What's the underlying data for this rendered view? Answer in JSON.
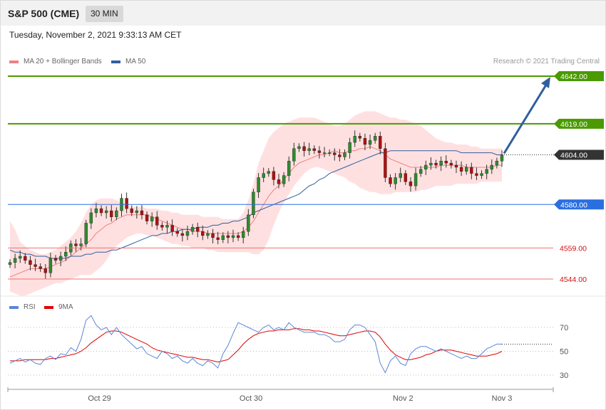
{
  "header": {
    "instrument": "S&P 500 (CME)",
    "timeframe": "30 MIN",
    "datetime": "Tuesday, November 2, 2021 9:33:13 AM CET",
    "credit": "Research © 2021 Trading Central"
  },
  "price_legend": [
    {
      "label": "MA 20 + Bollinger Bands",
      "color": "#f08080"
    },
    {
      "label": "MA 50",
      "color": "#2f5f9e"
    }
  ],
  "rsi_legend": [
    {
      "label": "RSI",
      "color": "#5b86d8"
    },
    {
      "label": "9MA",
      "color": "#e00000"
    }
  ],
  "colors": {
    "resistance": "#4a9a00",
    "pivot": "#2a6fe0",
    "support": "#d01010",
    "current": "#333333",
    "arrow": "#2f5f9e",
    "band": "#ffd6d6",
    "candle_up": "#2e8b2e",
    "candle_down": "#b01010"
  },
  "chart_data": [
    {
      "type": "candlestick",
      "title": "S&P 500 (CME)",
      "x_ticks": [
        "Oct 29",
        "Oct 30",
        "Nov 2",
        "Nov 3"
      ],
      "ylim": [
        4534,
        4650
      ],
      "current_price": "4604.00",
      "levels": [
        {
          "value": 4642,
          "label": "4642.00",
          "kind": "resistance"
        },
        {
          "value": 4619,
          "label": "4619.00",
          "kind": "resistance"
        },
        {
          "value": 4580,
          "label": "4580.00",
          "kind": "pivot"
        },
        {
          "value": 4559,
          "label": "4559.00",
          "kind": "support"
        },
        {
          "value": 4544,
          "label": "4544.00",
          "kind": "support"
        }
      ],
      "forecast_arrow": {
        "from": 4604,
        "to": 4642
      },
      "close_path": [
        4552,
        4554,
        4555,
        4553,
        4551,
        4550,
        4549,
        4547,
        4554,
        4553,
        4555,
        4557,
        4561,
        4560,
        4561,
        4571,
        4576,
        4578,
        4576,
        4577,
        4574,
        4577,
        4583,
        4578,
        4576,
        4577,
        4575,
        4572,
        4574,
        4570,
        4569,
        4570,
        4567,
        4566,
        4565,
        4567,
        4569,
        4567,
        4565,
        4566,
        4564,
        4563,
        4565,
        4564,
        4565,
        4564,
        4567,
        4575,
        4586,
        4593,
        4595,
        4596,
        4592,
        4590,
        4594,
        4601,
        4607,
        4608,
        4606,
        4607,
        4606,
        4605,
        4605,
        4605,
        4604,
        4603,
        4605,
        4610,
        4613,
        4612,
        4609,
        4611,
        4613,
        4607,
        4593,
        4590,
        4593,
        4595,
        4591,
        4589,
        4595,
        4597,
        4599,
        4600,
        4599,
        4601,
        4600,
        4599,
        4598,
        4596,
        4598,
        4595,
        4594,
        4595,
        4597,
        4599,
        4601,
        4604
      ],
      "ma20": [
        4545,
        4546,
        4547,
        4548,
        4549,
        4549,
        4549,
        4549,
        4550,
        4551,
        4552,
        4553,
        4555,
        4557,
        4559,
        4561,
        4563,
        4566,
        4568,
        4570,
        4571,
        4573,
        4574,
        4575,
        4575,
        4575,
        4575,
        4575,
        4574,
        4573,
        4572,
        4571,
        4570,
        4569,
        4568,
        4568,
        4567,
        4567,
        4567,
        4566,
        4566,
        4566,
        4566,
        4566,
        4566,
        4566,
        4567,
        4569,
        4572,
        4576,
        4580,
        4584,
        4587,
        4589,
        4592,
        4595,
        4598,
        4600,
        4601,
        4602,
        4603,
        4604,
        4604,
        4605,
        4606,
        4605,
        4605,
        4606,
        4606,
        4607,
        4607,
        4608,
        4607,
        4606,
        4604,
        4602,
        4601,
        4600,
        4599,
        4598,
        4598,
        4598,
        4598,
        4598,
        4598,
        4599,
        4599,
        4599,
        4599,
        4599,
        4598,
        4598,
        4598,
        4598,
        4598,
        4598,
        4599,
        4599
      ],
      "bb_upper": [
        4572,
        4568,
        4562,
        4560,
        4558,
        4557,
        4556,
        4556,
        4557,
        4558,
        4560,
        4562,
        4564,
        4567,
        4571,
        4576,
        4580,
        4582,
        4583,
        4583,
        4583,
        4582,
        4581,
        4580,
        4579,
        4579,
        4579,
        4578,
        4578,
        4578,
        4577,
        4577,
        4576,
        4576,
        4575,
        4575,
        4575,
        4575,
        4574,
        4574,
        4574,
        4574,
        4573,
        4573,
        4573,
        4573,
        4576,
        4582,
        4590,
        4600,
        4606,
        4612,
        4615,
        4617,
        4619,
        4620,
        4621,
        4622,
        4622,
        4622,
        4622,
        4621,
        4620,
        4619,
        4618,
        4618,
        4619,
        4621,
        4623,
        4624,
        4625,
        4625,
        4625,
        4624,
        4623,
        4622,
        4622,
        4621,
        4621,
        4620,
        4619,
        4618,
        4616,
        4614,
        4612,
        4611,
        4610,
        4610,
        4609,
        4609,
        4609,
        4608,
        4608,
        4607,
        4607,
        4607,
        4607,
        4607
      ],
      "bb_lower": [
        4538,
        4537,
        4536,
        4536,
        4537,
        4538,
        4539,
        4540,
        4541,
        4542,
        4542,
        4543,
        4544,
        4545,
        4546,
        4546,
        4546,
        4548,
        4550,
        4553,
        4557,
        4560,
        4562,
        4564,
        4565,
        4566,
        4566,
        4565,
        4565,
        4564,
        4563,
        4562,
        4561,
        4561,
        4560,
        4560,
        4559,
        4559,
        4559,
        4558,
        4558,
        4557,
        4557,
        4557,
        4557,
        4557,
        4557,
        4557,
        4556,
        4556,
        4558,
        4563,
        4570,
        4576,
        4581,
        4585,
        4589,
        4592,
        4595,
        4597,
        4598,
        4598,
        4597,
        4596,
        4595,
        4594,
        4593,
        4591,
        4590,
        4588,
        4587,
        4586,
        4586,
        4585,
        4585,
        4585,
        4586,
        4586,
        4586,
        4586,
        4586,
        4587,
        4587,
        4588,
        4589,
        4589,
        4589,
        4589,
        4590,
        4590,
        4590,
        4590,
        4590,
        4591,
        4591,
        4591,
        4591,
        4591
      ],
      "ma50": [
        4558,
        4557,
        4557,
        4556,
        4556,
        4555,
        4555,
        4555,
        4554,
        4554,
        4554,
        4554,
        4555,
        4555,
        4555,
        4556,
        4556,
        4557,
        4557,
        4557,
        4558,
        4558,
        4559,
        4560,
        4561,
        4562,
        4563,
        4564,
        4565,
        4565,
        4566,
        4566,
        4567,
        4567,
        4568,
        4568,
        4568,
        4569,
        4569,
        4569,
        4570,
        4570,
        4571,
        4571,
        4572,
        4572,
        4573,
        4574,
        4576,
        4577,
        4578,
        4579,
        4580,
        4581,
        4582,
        4583,
        4584,
        4585,
        4587,
        4589,
        4590,
        4592,
        4593,
        4595,
        4596,
        4597,
        4598,
        4599,
        4600,
        4601,
        4602,
        4603,
        4604,
        4605,
        4605,
        4606,
        4606,
        4606,
        4606,
        4606,
        4606,
        4606,
        4606,
        4606,
        4606,
        4606,
        4606,
        4606,
        4606,
        4605,
        4605,
        4605,
        4605,
        4605,
        4605,
        4605,
        4604,
        4604
      ]
    },
    {
      "type": "line",
      "title": "RSI",
      "x_ticks": [
        "Oct 29",
        "Oct 30",
        "Nov 2",
        "Nov 3"
      ],
      "ylim": [
        20,
        90
      ],
      "y_ticks": [
        70,
        50,
        30
      ],
      "series": [
        {
          "name": "RSI",
          "values": [
            40,
            42,
            44,
            41,
            43,
            40,
            39,
            44,
            46,
            43,
            48,
            47,
            53,
            50,
            60,
            76,
            80,
            72,
            68,
            70,
            64,
            70,
            64,
            60,
            56,
            52,
            54,
            48,
            46,
            44,
            50,
            48,
            44,
            46,
            42,
            40,
            44,
            40,
            38,
            42,
            40,
            36,
            48,
            55,
            65,
            74,
            72,
            70,
            68,
            66,
            70,
            72,
            68,
            70,
            68,
            74,
            70,
            68,
            66,
            66,
            66,
            64,
            64,
            62,
            58,
            58,
            60,
            68,
            72,
            72,
            70,
            64,
            58,
            40,
            32,
            42,
            46,
            40,
            38,
            48,
            52,
            54,
            54,
            52,
            50,
            52,
            50,
            48,
            46,
            44,
            46,
            44,
            44,
            48,
            52,
            54,
            56,
            56
          ]
        },
        {
          "name": "9MA",
          "values": [
            42,
            42,
            42,
            43,
            43,
            43,
            43,
            43,
            44,
            44,
            45,
            46,
            47,
            48,
            50,
            53,
            57,
            60,
            63,
            66,
            67,
            67,
            66,
            64,
            62,
            60,
            58,
            56,
            53,
            51,
            50,
            49,
            48,
            47,
            46,
            45,
            45,
            44,
            43,
            43,
            42,
            41,
            42,
            43,
            47,
            51,
            56,
            60,
            63,
            65,
            66,
            67,
            67,
            68,
            68,
            68,
            69,
            69,
            68,
            68,
            67,
            67,
            66,
            65,
            64,
            63,
            63,
            64,
            65,
            66,
            67,
            67,
            66,
            62,
            56,
            51,
            47,
            45,
            43,
            43,
            44,
            45,
            47,
            48,
            50,
            51,
            51,
            51,
            50,
            49,
            48,
            47,
            46,
            46,
            46,
            47,
            48,
            50
          ]
        }
      ]
    }
  ]
}
